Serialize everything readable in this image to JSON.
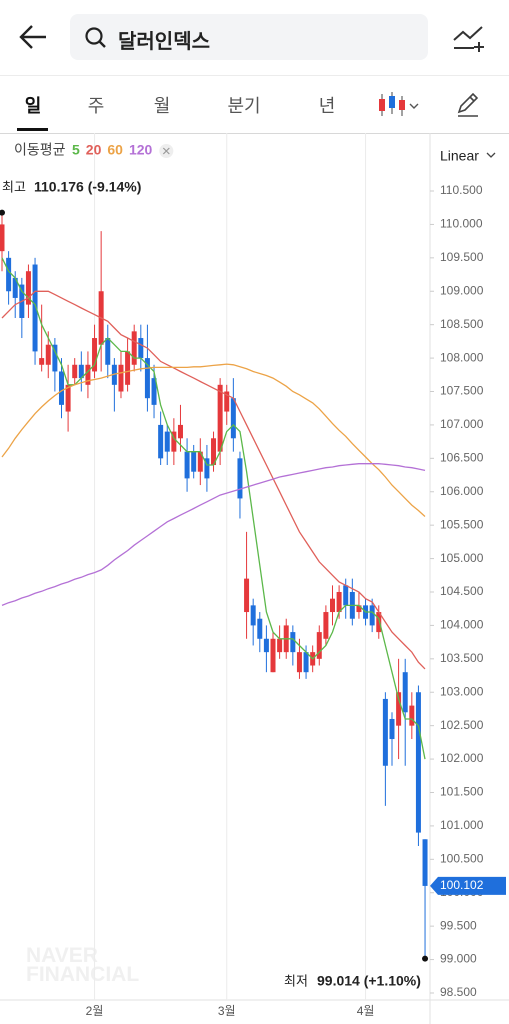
{
  "header": {
    "search_text": "달러인덱스"
  },
  "tabs": [
    "일",
    "주",
    "월",
    "분기",
    "년"
  ],
  "chart_data": {
    "type": "candlestick",
    "legend_title": "이동평균",
    "scale_label": "Linear",
    "watermark": [
      "NAVER",
      "FINANCIAL"
    ],
    "high_label": "최고",
    "high_text": "110.176 (-9.14%)",
    "low_label": "최저",
    "low_text": "99.014 (+1.10%)",
    "up_color": "#e5383b",
    "down_color": "#1f6fdc",
    "xgrid": true,
    "categories": [
      null,
      null,
      null,
      null,
      null,
      null,
      null,
      null,
      null,
      null,
      null,
      null,
      null,
      null,
      "2월",
      null,
      null,
      null,
      null,
      null,
      null,
      null,
      null,
      null,
      null,
      null,
      null,
      null,
      null,
      null,
      null,
      null,
      null,
      null,
      "3월",
      null,
      null,
      null,
      null,
      null,
      null,
      null,
      null,
      null,
      null,
      null,
      null,
      null,
      null,
      null,
      null,
      null,
      null,
      null,
      null,
      "4월",
      null,
      null,
      null,
      null,
      null,
      null,
      null,
      null,
      null
    ],
    "open": [
      109.6,
      109.5,
      109.2,
      109.1,
      108.8,
      109.4,
      107.9,
      107.9,
      108.2,
      107.8,
      107.2,
      107.7,
      107.9,
      107.6,
      107.8,
      108.2,
      108.3,
      107.9,
      107.5,
      107.6,
      107.9,
      108.3,
      108.0,
      107.7,
      107.0,
      106.9,
      106.6,
      106.8,
      106.6,
      106.6,
      106.3,
      106.5,
      106.4,
      106.6,
      107.2,
      107.4,
      106.5,
      104.2,
      104.3,
      104.1,
      103.8,
      103.3,
      103.6,
      103.6,
      103.9,
      103.3,
      103.6,
      103.4,
      103.5,
      103.8,
      104.2,
      104.2,
      104.6,
      104.5,
      104.2,
      104.3,
      104.3,
      103.9,
      102.9,
      102.6,
      102.5,
      103.3,
      102.5,
      103.0,
      100.8
    ],
    "high": [
      110.176,
      109.6,
      109.3,
      109.2,
      109.4,
      109.5,
      108.8,
      108.4,
      108.3,
      108.0,
      107.9,
      108.0,
      108.1,
      108.1,
      108.5,
      109.9,
      108.5,
      108.0,
      108.1,
      108.3,
      108.5,
      108.5,
      108.5,
      107.9,
      107.2,
      107.0,
      107.1,
      107.3,
      106.8,
      106.7,
      106.8,
      106.7,
      106.9,
      107.7,
      107.6,
      107.7,
      106.6,
      105.4,
      104.4,
      104.2,
      104.0,
      103.9,
      104.0,
      104.1,
      104.0,
      103.8,
      103.7,
      103.7,
      104.0,
      104.3,
      104.6,
      104.6,
      104.7,
      104.7,
      104.5,
      104.4,
      104.4,
      104.3,
      103.0,
      102.7,
      103.5,
      103.5,
      103.0,
      103.1,
      100.8
    ],
    "low": [
      109.3,
      108.8,
      108.6,
      108.3,
      108.6,
      107.9,
      107.8,
      107.7,
      107.5,
      107.1,
      106.9,
      107.6,
      107.5,
      107.4,
      107.7,
      107.8,
      107.7,
      107.2,
      107.4,
      107.5,
      107.8,
      107.8,
      107.2,
      107.1,
      106.4,
      106.4,
      106.4,
      106.6,
      106.0,
      106.2,
      106.1,
      106.0,
      106.3,
      106.4,
      107.0,
      106.6,
      105.6,
      103.8,
      103.7,
      103.6,
      103.3,
      103.3,
      103.5,
      103.5,
      103.4,
      103.2,
      103.2,
      103.3,
      103.4,
      103.7,
      104.0,
      104.1,
      104.1,
      104.0,
      104.1,
      104.0,
      103.9,
      103.8,
      101.3,
      101.9,
      102.0,
      101.9,
      102.3,
      100.7,
      99.014
    ],
    "close": [
      110.0,
      109.0,
      108.9,
      108.6,
      109.3,
      108.1,
      108.0,
      108.2,
      107.8,
      107.3,
      107.6,
      107.9,
      107.7,
      107.9,
      108.3,
      109.0,
      107.9,
      107.6,
      107.9,
      108.1,
      108.4,
      108.0,
      107.4,
      107.3,
      106.5,
      106.6,
      106.9,
      107.0,
      106.2,
      106.3,
      106.6,
      106.2,
      106.8,
      107.6,
      107.5,
      106.8,
      105.9,
      104.7,
      104.0,
      103.8,
      103.6,
      103.8,
      103.8,
      104.0,
      103.6,
      103.6,
      103.3,
      103.6,
      103.9,
      104.2,
      104.4,
      104.5,
      104.3,
      104.1,
      104.3,
      104.1,
      104.0,
      104.2,
      101.9,
      102.3,
      103.0,
      102.7,
      102.8,
      100.9,
      100.102
    ],
    "series": [
      {
        "name": "5",
        "color": "#5cb84a",
        "values": [
          109.5,
          109.3,
          109.2,
          109.0,
          108.9,
          108.8,
          108.5,
          108.3,
          108.1,
          107.9,
          107.6,
          107.6,
          107.7,
          107.8,
          107.9,
          108.2,
          108.3,
          108.2,
          108.1,
          108.1,
          108.0,
          108.0,
          107.9,
          107.8,
          107.3,
          107.0,
          106.8,
          106.7,
          106.6,
          106.6,
          106.6,
          106.4,
          106.4,
          106.6,
          106.9,
          107.0,
          106.9,
          106.3,
          105.6,
          104.9,
          104.2,
          103.9,
          103.8,
          103.8,
          103.8,
          103.7,
          103.6,
          103.5,
          103.6,
          103.7,
          103.9,
          104.2,
          104.3,
          104.3,
          104.3,
          104.2,
          104.2,
          104.1,
          103.7,
          103.3,
          102.9,
          102.6,
          102.6,
          102.5,
          102.0
        ]
      },
      {
        "name": "20",
        "color": "#e0605a",
        "values": [
          108.6,
          108.7,
          108.8,
          108.85,
          108.9,
          109.0,
          109.0,
          109.0,
          108.95,
          108.9,
          108.85,
          108.8,
          108.75,
          108.7,
          108.65,
          108.6,
          108.55,
          108.45,
          108.35,
          108.3,
          108.25,
          108.2,
          108.15,
          108.05,
          107.95,
          107.9,
          107.85,
          107.8,
          107.75,
          107.7,
          107.65,
          107.6,
          107.55,
          107.5,
          107.45,
          107.4,
          107.2,
          107.0,
          106.8,
          106.6,
          106.4,
          106.2,
          106.0,
          105.8,
          105.6,
          105.4,
          105.25,
          105.1,
          104.95,
          104.85,
          104.75,
          104.65,
          104.6,
          104.55,
          104.5,
          104.4,
          104.35,
          104.2,
          104.05,
          103.9,
          103.8,
          103.7,
          103.6,
          103.45,
          103.35
        ]
      },
      {
        "name": "60",
        "color": "#eca347",
        "values": [
          106.52,
          106.65,
          106.8,
          106.93,
          107.05,
          107.17,
          107.27,
          107.36,
          107.44,
          107.51,
          107.56,
          107.6,
          107.63,
          107.66,
          107.68,
          107.7,
          107.73,
          107.76,
          107.78,
          107.8,
          107.82,
          107.84,
          107.85,
          107.86,
          107.86,
          107.86,
          107.86,
          107.86,
          107.86,
          107.87,
          107.87,
          107.88,
          107.89,
          107.9,
          107.91,
          107.9,
          107.87,
          107.84,
          107.8,
          107.77,
          107.74,
          107.7,
          107.64,
          107.58,
          107.5,
          107.45,
          107.39,
          107.33,
          107.24,
          107.13,
          107.02,
          106.92,
          106.83,
          106.72,
          106.62,
          106.52,
          106.42,
          106.33,
          106.22,
          106.1,
          106.0,
          105.9,
          105.8,
          105.72,
          105.63
        ]
      },
      {
        "name": "120",
        "color": "#b471d6",
        "values": [
          104.3,
          104.34,
          104.37,
          104.41,
          104.44,
          104.48,
          104.51,
          104.55,
          104.58,
          104.62,
          104.65,
          104.69,
          104.72,
          104.76,
          104.79,
          104.83,
          104.9,
          104.98,
          105.05,
          105.12,
          105.2,
          105.27,
          105.34,
          105.41,
          105.48,
          105.55,
          105.6,
          105.65,
          105.7,
          105.75,
          105.8,
          105.85,
          105.9,
          105.95,
          105.98,
          106.01,
          106.04,
          106.07,
          106.1,
          106.13,
          106.16,
          106.19,
          106.22,
          106.24,
          106.26,
          106.28,
          106.3,
          106.32,
          106.34,
          106.36,
          106.37,
          106.39,
          106.4,
          106.41,
          106.42,
          106.42,
          106.42,
          106.42,
          106.41,
          106.4,
          106.39,
          106.37,
          106.36,
          106.34,
          106.32
        ]
      }
    ],
    "ylim": [
      98.395,
      111.368
    ],
    "yticks": [
      {
        "value": 98.5,
        "label": "98.500"
      },
      {
        "value": 99,
        "label": "99.000"
      },
      {
        "value": 99.5,
        "label": "99.500"
      },
      {
        "value": 100,
        "label": "100.000"
      },
      {
        "value": 100.5,
        "label": "100.500"
      },
      {
        "value": 101,
        "label": "101.000"
      },
      {
        "value": 101.5,
        "label": "101.500"
      },
      {
        "value": 102,
        "label": "102.000"
      },
      {
        "value": 102.5,
        "label": "102.500"
      },
      {
        "value": 103,
        "label": "103.000"
      },
      {
        "value": 103.5,
        "label": "103.500"
      },
      {
        "value": 104,
        "label": "104.000"
      },
      {
        "value": 104.5,
        "label": "104.500"
      },
      {
        "value": 105,
        "label": "105.000"
      },
      {
        "value": 105.5,
        "label": "105.500"
      },
      {
        "value": 106,
        "label": "106.000"
      },
      {
        "value": 106.5,
        "label": "106.500"
      },
      {
        "value": 107,
        "label": "107.000"
      },
      {
        "value": 107.5,
        "label": "107.500"
      },
      {
        "value": 108,
        "label": "108.000"
      },
      {
        "value": 108.5,
        "label": "108.500"
      },
      {
        "value": 109,
        "label": "109.000"
      },
      {
        "value": 109.5,
        "label": "109.500"
      },
      {
        "value": 110,
        "label": "110.000"
      },
      {
        "value": 110.5,
        "label": "110.500"
      }
    ]
  }
}
